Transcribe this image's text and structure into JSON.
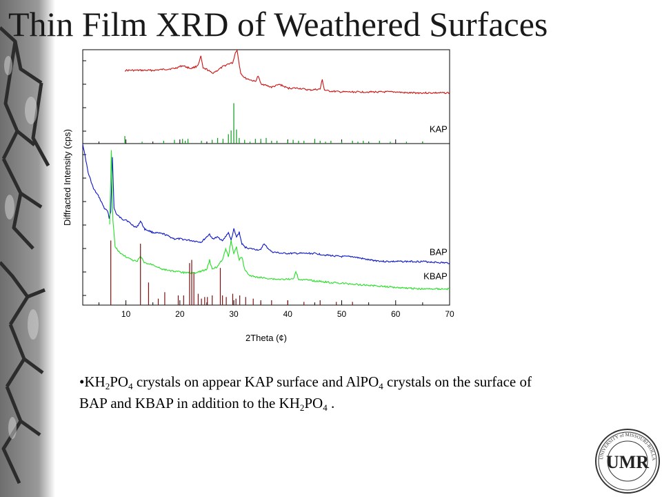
{
  "title": "Thin Film XRD of Weathered Surfaces",
  "bullet": {
    "marker": "•",
    "parts": [
      {
        "t": "KH"
      },
      {
        "s": "2"
      },
      {
        "t": "PO"
      },
      {
        "s": "4"
      },
      {
        "t": " crystals on appear KAP surface and AlPO"
      },
      {
        "s": "4"
      },
      {
        "t": " crystals on the surface of BAP and KBAP in addition to the KH"
      },
      {
        "s": "2"
      },
      {
        "t": "PO"
      },
      {
        "s": "4"
      },
      {
        "t": " ."
      }
    ]
  },
  "logo": {
    "ring_text": "UNIVERSITY of MISSOURI-ROLLA",
    "monogram": "UMR"
  },
  "colors": {
    "kap": "#cc1111",
    "bap": "#0a14c8",
    "kbap": "#22e022",
    "ref_kap": "#0a9a1a",
    "ref_al": "#7a0f0f",
    "axis": "#000000"
  },
  "chart_data": {
    "type": "line",
    "xlabel": "2Theta (¢)",
    "ylabel": "Diffracted Intensity (cps)",
    "xlim": [
      2,
      70
    ],
    "x_ticks": [
      10,
      20,
      30,
      40,
      50,
      60,
      70
    ],
    "panels": [
      {
        "name": "top",
        "series": [
          {
            "name": "KAP",
            "color": "#cc1111",
            "x": [
              9.8,
              12,
              15,
              17,
              19,
              20.5,
              22,
              23,
              23.5,
              23.9,
              24.3,
              25,
              26,
              27,
              28,
              29,
              29.8,
              30.3,
              30.6,
              30.9,
              31.3,
              32,
              33,
              34,
              34.5,
              35,
              37,
              38.5,
              40,
              42,
              44,
              46,
              46.4,
              46.8,
              47.5,
              50,
              53,
              56,
              58.5,
              60,
              62,
              66,
              69,
              70
            ],
            "y": [
              0.78,
              0.78,
              0.78,
              0.79,
              0.8,
              0.83,
              0.8,
              0.82,
              0.85,
              0.93,
              0.8,
              0.79,
              0.75,
              0.78,
              0.82,
              0.85,
              0.86,
              0.97,
              1.0,
              0.88,
              0.75,
              0.7,
              0.68,
              0.66,
              0.72,
              0.64,
              0.6,
              0.63,
              0.59,
              0.59,
              0.57,
              0.58,
              0.68,
              0.57,
              0.56,
              0.55,
              0.55,
              0.55,
              0.55,
              0.55,
              0.54,
              0.54,
              0.54,
              0.54
            ]
          }
        ],
        "sticks": [
          {
            "color": "#0a9a1a",
            "x": [
              9.8,
              13,
              17,
              19,
              20.5,
              21,
              21.5,
              24,
              26,
              27,
              28,
              29,
              29.5,
              30,
              30.5,
              31,
              32,
              33,
              34,
              35,
              36,
              37,
              38,
              40,
              41,
              42,
              43,
              45,
              46,
              47,
              48,
              50,
              52,
              53,
              54,
              55,
              57,
              59,
              62,
              65
            ],
            "h": [
              0.08,
              0.02,
              0.03,
              0.04,
              0.05,
              0.03,
              0.05,
              0.03,
              0.04,
              0.06,
              0.05,
              0.1,
              0.14,
              0.43,
              0.15,
              0.06,
              0.04,
              0.02,
              0.05,
              0.05,
              0.06,
              0.03,
              0.03,
              0.03,
              0.04,
              0.03,
              0.03,
              0.05,
              0.03,
              0.02,
              0.03,
              0.02,
              0.03,
              0.02,
              0.03,
              0.02,
              0.03,
              0.02,
              0.02,
              0.02
            ]
          }
        ]
      },
      {
        "name": "bottom",
        "series": [
          {
            "name": "BAP",
            "color": "#0a14c8",
            "x": [
              2,
              3,
              4,
              5,
              6,
              6.6,
              6.9,
              7.2,
              7.5,
              7.8,
              8.3,
              9,
              9.5,
              10,
              11,
              12,
              12.7,
              13.5,
              15,
              17,
              19,
              20,
              22,
              24,
              25.5,
              26,
              27,
              28,
              29,
              29.5,
              30,
              30.5,
              31,
              31.5,
              32,
              33,
              35,
              35.5,
              37,
              39,
              41,
              43,
              45,
              47,
              50,
              52,
              55,
              58,
              61,
              65,
              70
            ],
            "y": [
              1.0,
              0.82,
              0.72,
              0.67,
              0.6,
              0.58,
              0.54,
              0.58,
              0.92,
              0.6,
              0.56,
              0.54,
              0.53,
              0.53,
              0.5,
              0.48,
              0.52,
              0.47,
              0.45,
              0.44,
              0.41,
              0.41,
              0.4,
              0.39,
              0.44,
              0.41,
              0.42,
              0.4,
              0.45,
              0.4,
              0.47,
              0.42,
              0.45,
              0.38,
              0.36,
              0.35,
              0.34,
              0.38,
              0.33,
              0.32,
              0.32,
              0.32,
              0.32,
              0.31,
              0.3,
              0.3,
              0.28,
              0.27,
              0.27,
              0.27,
              0.26
            ]
          }
        ]
      }
    ]
  }
}
